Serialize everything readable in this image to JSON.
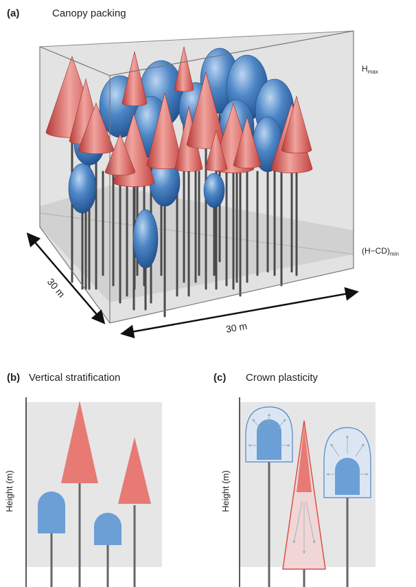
{
  "panel_a": {
    "letter": "(a)",
    "title": "Canopy packing",
    "hmax_main": "H",
    "hmax_sub": "max",
    "hcd_main": "(H−CD)",
    "hcd_sub": "min",
    "dim_depth": "30 m",
    "dim_width": "30 m"
  },
  "panel_b": {
    "letter": "(b)",
    "title": "Vertical stratification",
    "ylabel": "Height (m)"
  },
  "panel_c": {
    "letter": "(c)",
    "title": "Crown plasticity",
    "ylabel": "Height (m)"
  },
  "colors": {
    "cone_red": "#e06a64",
    "ellipsoid_blue": "#4d86c6",
    "box_gray": "#dcdcdc",
    "stem_gray": "#555555"
  }
}
